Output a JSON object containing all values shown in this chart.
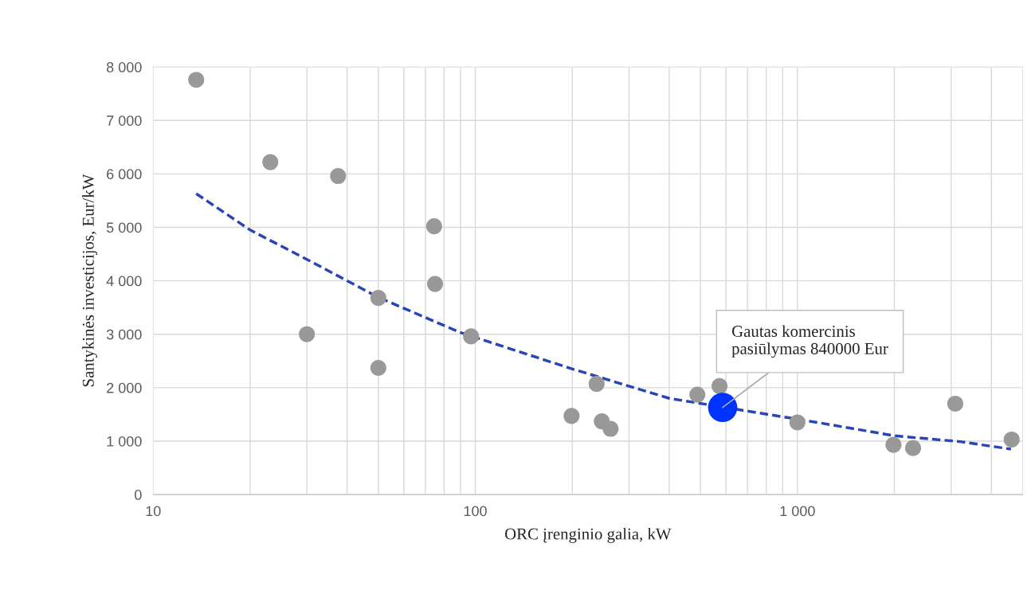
{
  "chart_data": {
    "type": "scatter",
    "xlabel": "ORC įrenginio galia, kW",
    "ylabel": "Santykinės investicijos, Eur/kW",
    "log": "x",
    "xlim": [
      10,
      5000
    ],
    "ylim": [
      0,
      8000
    ],
    "xticks": [
      10,
      {
        "value": 20,
        "label": null
      },
      {
        "value": 30,
        "label": null
      },
      {
        "value": 40,
        "label": null
      },
      {
        "value": 50,
        "label": null
      },
      {
        "value": 60,
        "label": null
      },
      {
        "value": 70,
        "label": null
      },
      {
        "value": 80,
        "label": null
      },
      {
        "value": 90,
        "label": null
      },
      100,
      {
        "value": 200,
        "label": null
      },
      {
        "value": 300,
        "label": null
      },
      {
        "value": 400,
        "label": null
      },
      {
        "value": 500,
        "label": null
      },
      {
        "value": 600,
        "label": null
      },
      {
        "value": 700,
        "label": null
      },
      {
        "value": 800,
        "label": null
      },
      {
        "value": 900,
        "label": null
      },
      {
        "value": 1000,
        "label": "1 000"
      },
      {
        "value": 2000,
        "label": null
      },
      {
        "value": 3000,
        "label": null
      },
      {
        "value": 4000,
        "label": null
      }
    ],
    "yticks": [
      0,
      {
        "value": 1000,
        "label": "1 000"
      },
      {
        "value": 2000,
        "label": "2 000"
      },
      {
        "value": 3000,
        "label": "3 000"
      },
      {
        "value": 4000,
        "label": "4 000"
      },
      {
        "value": 5000,
        "label": "5 000"
      },
      {
        "value": 6000,
        "label": "6 000"
      },
      {
        "value": 7000,
        "label": "7 000"
      },
      {
        "value": 8000,
        "label": "8 000"
      }
    ],
    "grid": true,
    "marker": "circle",
    "series": [
      {
        "color": "#999999",
        "x": [
          13.6,
          23.1,
          30,
          37.5,
          50,
          50,
          74.5,
          75,
          97,
          199,
          238,
          247,
          263,
          489,
          573,
          1000,
          1987,
          2286,
          3090,
          4625
        ],
        "values": [
          7760,
          6220,
          3000,
          5960,
          3680,
          2370,
          5020,
          3940,
          2960,
          1470,
          2070,
          1370,
          1230,
          1870,
          2030,
          1350,
          930,
          870,
          1700,
          1030
        ]
      },
      {
        "type": "line",
        "color": "#2846b4",
        "line_style": "dashed",
        "marker": "none",
        "x": [
          13.6,
          20,
          30,
          50,
          90,
          200,
          400,
          1150,
          2000,
          3200,
          4600
        ],
        "values": [
          5630,
          4950,
          4400,
          3690,
          3030,
          2350,
          1800,
          1350,
          1100,
          990,
          850
        ]
      },
      {
        "color": "#0033ff",
        "x": [
          586
        ],
        "values": [
          1630
        ]
      }
    ],
    "annotations": [
      {
        "text": "Gautas komercinis\npasiūlymas 840000 Eur",
        "x": 586,
        "y": 1630
      }
    ]
  }
}
